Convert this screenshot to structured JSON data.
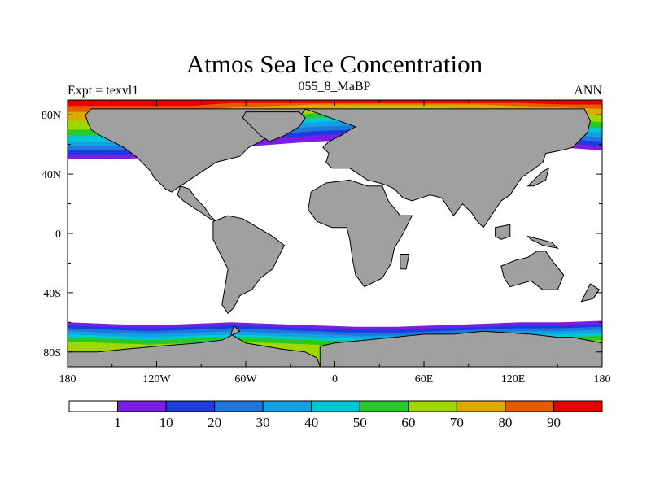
{
  "chart_data": {
    "type": "heatmap",
    "title": "Atmos Sea Ice Concentration",
    "left_subtitle": "Expt = texvl1",
    "center_subtitle": "055_8_MaBP",
    "right_subtitle": "ANN",
    "x_ticks": [
      {
        "value": -180,
        "label": "180"
      },
      {
        "value": -120,
        "label": "120W"
      },
      {
        "value": -60,
        "label": "60W"
      },
      {
        "value": 0,
        "label": "0"
      },
      {
        "value": 60,
        "label": "60E"
      },
      {
        "value": 120,
        "label": "120E"
      },
      {
        "value": 180,
        "label": "180"
      }
    ],
    "y_ticks": [
      {
        "value": 80,
        "label": "80N"
      },
      {
        "value": 40,
        "label": "40N"
      },
      {
        "value": 0,
        "label": "0"
      },
      {
        "value": -40,
        "label": "40S"
      },
      {
        "value": -80,
        "label": "80S"
      }
    ],
    "xlim": [
      -180,
      180
    ],
    "ylim": [
      -90,
      90
    ],
    "colorbar": {
      "boundaries": [
        "1",
        "10",
        "20",
        "30",
        "40",
        "50",
        "60",
        "70",
        "80",
        "90"
      ],
      "colors": [
        "#ffffff",
        "#7a1ee6",
        "#1e3cde",
        "#1e78dc",
        "#14a0e6",
        "#00c8d2",
        "#28c828",
        "#a0d700",
        "#dcaa00",
        "#e65a00",
        "#e60000"
      ]
    },
    "colors": {
      "land": "#a0a0a0",
      "ocean": "#ffffff"
    },
    "north_ice_bands": [
      {
        "level": 1,
        "lat": [
          50,
          50,
          51,
          52,
          58,
          60,
          62,
          63,
          64,
          64,
          63,
          62,
          58,
          56
        ]
      },
      {
        "level": 2,
        "lat": [
          53,
          53,
          54,
          56,
          62,
          64,
          66,
          67,
          68,
          68,
          66,
          65,
          61,
          59
        ]
      },
      {
        "level": 3,
        "lat": [
          56,
          56,
          57,
          59,
          65,
          67,
          69,
          70,
          71,
          71,
          69,
          68,
          64,
          62
        ]
      },
      {
        "level": 4,
        "lat": [
          59,
          59,
          60,
          62,
          68,
          70,
          72,
          73,
          74,
          74,
          72,
          71,
          67,
          65
        ]
      },
      {
        "level": 5,
        "lat": [
          62,
          62,
          63,
          65,
          71,
          73,
          75,
          76,
          77,
          77,
          75,
          74,
          70,
          68
        ]
      },
      {
        "level": 6,
        "lat": [
          66,
          66,
          66,
          68,
          74,
          76,
          78,
          79,
          80,
          80,
          78,
          77,
          73,
          71
        ]
      },
      {
        "level": 7,
        "lat": [
          70,
          70,
          70,
          72,
          77,
          79,
          81,
          82,
          82,
          82,
          81,
          80,
          77,
          75
        ]
      },
      {
        "level": 8,
        "lat": [
          76,
          76,
          76,
          77,
          81,
          82,
          84,
          85,
          85,
          85,
          84,
          83,
          81,
          80
        ]
      },
      {
        "level": 9,
        "lat": [
          82,
          82,
          82,
          83,
          85,
          86,
          87,
          87,
          87,
          87,
          87,
          86,
          85,
          84
        ]
      },
      {
        "level": 10,
        "lat": [
          86,
          86,
          86,
          86,
          88,
          88,
          88,
          88,
          88,
          88,
          88,
          88,
          87,
          87
        ]
      }
    ],
    "south_ice_bands": [
      {
        "level": 1,
        "lat": [
          -60,
          -61,
          -62,
          -61,
          -60,
          -61,
          -62,
          -63,
          -63,
          -62,
          -61,
          -60,
          -60,
          -59
        ]
      },
      {
        "level": 2,
        "lat": [
          -62,
          -63,
          -64,
          -63,
          -62,
          -63,
          -64,
          -65,
          -65,
          -64,
          -63,
          -62,
          -62,
          -61
        ]
      },
      {
        "level": 3,
        "lat": [
          -64,
          -65,
          -66,
          -65,
          -64,
          -65,
          -66,
          -67,
          -67,
          -66,
          -65,
          -64,
          -64,
          -63
        ]
      },
      {
        "level": 4,
        "lat": [
          -66,
          -67,
          -68,
          -67,
          -66,
          -67,
          -68,
          -69,
          -69,
          -68,
          -67,
          -66,
          -66,
          -65
        ]
      },
      {
        "level": 5,
        "lat": [
          -68,
          -69,
          -70,
          -69,
          -68,
          -69,
          -70,
          -71,
          -71,
          -70,
          -69,
          -68,
          -68,
          -67
        ]
      },
      {
        "level": 6,
        "lat": [
          -70,
          -71,
          -72,
          -71,
          -70,
          -71,
          -72,
          -73,
          -73,
          -72,
          -71,
          -70,
          -70,
          -69
        ]
      },
      {
        "level": 7,
        "lat": [
          -73,
          -74,
          -75,
          -74,
          -73,
          -74,
          -75,
          -76,
          -76,
          -75,
          -74,
          -73,
          -73,
          -72
        ]
      }
    ],
    "land_polygons": [
      {
        "name": "north-america",
        "pts": [
          [
            -164,
            84
          ],
          [
            -20,
            84
          ],
          [
            -24,
            78
          ],
          [
            -34,
            74
          ],
          [
            -38,
            72
          ],
          [
            -44,
            66
          ],
          [
            -50,
            62
          ],
          [
            -58,
            58
          ],
          [
            -64,
            52
          ],
          [
            -72,
            50
          ],
          [
            -80,
            48
          ],
          [
            -86,
            44
          ],
          [
            -92,
            40
          ],
          [
            -98,
            36
          ],
          [
            -104,
            32
          ],
          [
            -110,
            28
          ],
          [
            -114,
            30
          ],
          [
            -118,
            34
          ],
          [
            -122,
            38
          ],
          [
            -124,
            42
          ],
          [
            -128,
            46
          ],
          [
            -134,
            52
          ],
          [
            -142,
            58
          ],
          [
            -150,
            62
          ],
          [
            -158,
            66
          ],
          [
            -164,
            70
          ],
          [
            -166,
            74
          ],
          [
            -168,
            80
          ]
        ]
      },
      {
        "name": "central-america",
        "pts": [
          [
            -104,
            32
          ],
          [
            -98,
            30
          ],
          [
            -94,
            24
          ],
          [
            -88,
            18
          ],
          [
            -84,
            12
          ],
          [
            -80,
            8
          ],
          [
            -84,
            10
          ],
          [
            -90,
            14
          ],
          [
            -96,
            18
          ],
          [
            -102,
            22
          ],
          [
            -106,
            26
          ]
        ]
      },
      {
        "name": "greenland",
        "pts": [
          [
            -60,
            82
          ],
          [
            -24,
            82
          ],
          [
            -20,
            78
          ],
          [
            -24,
            72
          ],
          [
            -34,
            66
          ],
          [
            -44,
            62
          ],
          [
            -50,
            66
          ],
          [
            -56,
            72
          ],
          [
            -62,
            78
          ]
        ]
      },
      {
        "name": "eurasia",
        "pts": [
          [
            -20,
            84
          ],
          [
            168,
            84
          ],
          [
            172,
            76
          ],
          [
            170,
            68
          ],
          [
            164,
            62
          ],
          [
            160,
            58
          ],
          [
            152,
            56
          ],
          [
            142,
            54
          ],
          [
            140,
            48
          ],
          [
            132,
            42
          ],
          [
            126,
            38
          ],
          [
            122,
            32
          ],
          [
            118,
            26
          ],
          [
            112,
            22
          ],
          [
            108,
            16
          ],
          [
            104,
            10
          ],
          [
            100,
            4
          ],
          [
            96,
            8
          ],
          [
            92,
            14
          ],
          [
            86,
            20
          ],
          [
            80,
            12
          ],
          [
            76,
            18
          ],
          [
            72,
            24
          ],
          [
            64,
            26
          ],
          [
            58,
            24
          ],
          [
            52,
            22
          ],
          [
            46,
            24
          ],
          [
            40,
            30
          ],
          [
            36,
            32
          ],
          [
            30,
            34
          ],
          [
            22,
            36
          ],
          [
            16,
            40
          ],
          [
            10,
            44
          ],
          [
            4,
            44
          ],
          [
            -2,
            44
          ],
          [
            -6,
            48
          ],
          [
            -4,
            54
          ],
          [
            -8,
            58
          ],
          [
            -4,
            62
          ],
          [
            4,
            66
          ],
          [
            10,
            70
          ],
          [
            14,
            72
          ]
        ]
      },
      {
        "name": "africa",
        "pts": [
          [
            -16,
            28
          ],
          [
            -6,
            34
          ],
          [
            10,
            36
          ],
          [
            22,
            32
          ],
          [
            32,
            32
          ],
          [
            36,
            22
          ],
          [
            44,
            12
          ],
          [
            52,
            12
          ],
          [
            46,
            0
          ],
          [
            40,
            -10
          ],
          [
            38,
            -20
          ],
          [
            32,
            -30
          ],
          [
            20,
            -36
          ],
          [
            14,
            -28
          ],
          [
            12,
            -18
          ],
          [
            10,
            -4
          ],
          [
            8,
            4
          ],
          [
            -2,
            4
          ],
          [
            -12,
            8
          ],
          [
            -18,
            16
          ]
        ]
      },
      {
        "name": "south-america",
        "pts": [
          [
            -82,
            8
          ],
          [
            -72,
            12
          ],
          [
            -62,
            10
          ],
          [
            -52,
            4
          ],
          [
            -42,
            -2
          ],
          [
            -34,
            -8
          ],
          [
            -38,
            -16
          ],
          [
            -42,
            -24
          ],
          [
            -50,
            -30
          ],
          [
            -56,
            -38
          ],
          [
            -64,
            -42
          ],
          [
            -68,
            -50
          ],
          [
            -72,
            -54
          ],
          [
            -76,
            -48
          ],
          [
            -74,
            -36
          ],
          [
            -72,
            -24
          ],
          [
            -78,
            -12
          ],
          [
            -82,
            -4
          ]
        ]
      },
      {
        "name": "australia",
        "pts": [
          [
            112,
            -22
          ],
          [
            114,
            -30
          ],
          [
            118,
            -36
          ],
          [
            132,
            -32
          ],
          [
            140,
            -38
          ],
          [
            150,
            -38
          ],
          [
            154,
            -28
          ],
          [
            146,
            -18
          ],
          [
            142,
            -12
          ],
          [
            136,
            -12
          ],
          [
            130,
            -16
          ],
          [
            122,
            -18
          ]
        ]
      },
      {
        "name": "antarctica-west",
        "pts": [
          [
            -180,
            -90
          ],
          [
            -10,
            -90
          ],
          [
            -12,
            -84
          ],
          [
            -20,
            -80
          ],
          [
            -36,
            -78
          ],
          [
            -60,
            -74
          ],
          [
            -70,
            -68
          ],
          [
            -68,
            -62
          ],
          [
            -64,
            -66
          ],
          [
            -76,
            -72
          ],
          [
            -92,
            -74
          ],
          [
            -118,
            -76
          ],
          [
            -140,
            -78
          ],
          [
            -160,
            -80
          ],
          [
            -180,
            -80
          ]
        ]
      },
      {
        "name": "antarctica-east",
        "pts": [
          [
            -10,
            -90
          ],
          [
            180,
            -90
          ],
          [
            180,
            -74
          ],
          [
            170,
            -72
          ],
          [
            160,
            -70
          ],
          [
            150,
            -70
          ],
          [
            132,
            -68
          ],
          [
            100,
            -66
          ],
          [
            80,
            -68
          ],
          [
            60,
            -68
          ],
          [
            40,
            -70
          ],
          [
            20,
            -72
          ],
          [
            0,
            -74
          ],
          [
            -10,
            -76
          ]
        ]
      },
      {
        "name": "indonesia-borneo",
        "pts": [
          [
            108,
            4
          ],
          [
            118,
            6
          ],
          [
            118,
            -2
          ],
          [
            112,
            -4
          ],
          [
            108,
            -2
          ]
        ]
      },
      {
        "name": "new-guinea",
        "pts": [
          [
            130,
            -2
          ],
          [
            146,
            -6
          ],
          [
            150,
            -10
          ],
          [
            140,
            -8
          ],
          [
            132,
            -4
          ]
        ]
      },
      {
        "name": "japan",
        "pts": [
          [
            130,
            32
          ],
          [
            140,
            42
          ],
          [
            144,
            44
          ],
          [
            142,
            36
          ],
          [
            134,
            32
          ]
        ]
      },
      {
        "name": "new-zealand",
        "pts": [
          [
            166,
            -46
          ],
          [
            172,
            -34
          ],
          [
            178,
            -38
          ],
          [
            174,
            -44
          ]
        ]
      },
      {
        "name": "madagascar",
        "pts": [
          [
            44,
            -14
          ],
          [
            50,
            -14
          ],
          [
            48,
            -24
          ],
          [
            44,
            -24
          ]
        ]
      }
    ]
  }
}
